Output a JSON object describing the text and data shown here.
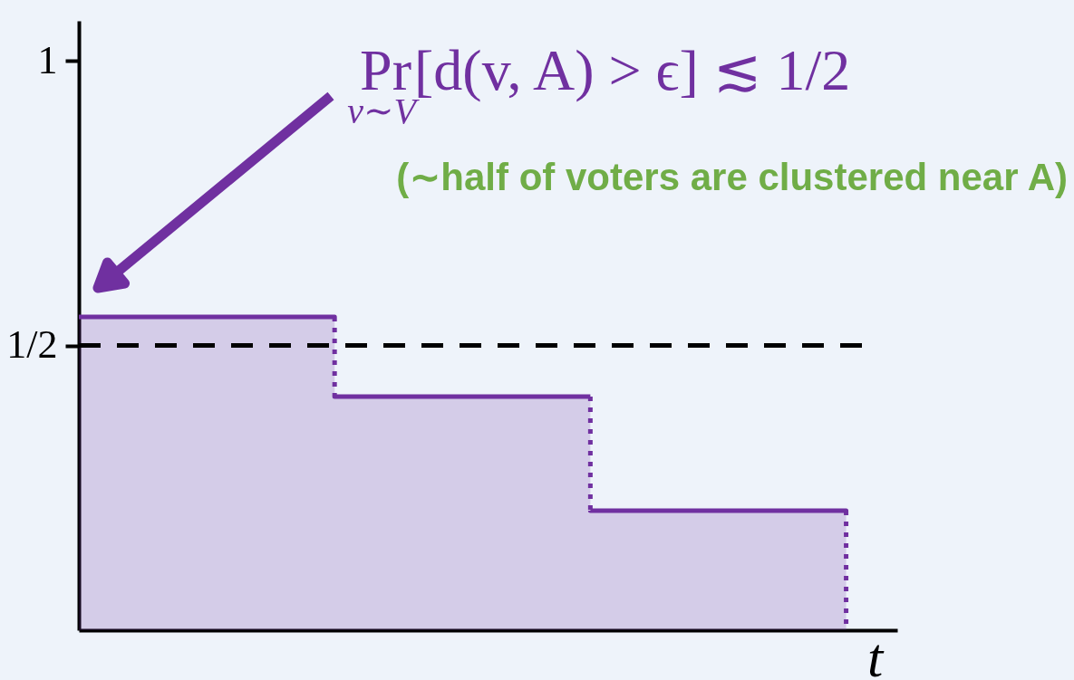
{
  "chart_data": {
    "type": "step",
    "categories": [
      null,
      null,
      null,
      null
    ],
    "series": [
      {
        "type": "area",
        "color": "#7030a0",
        "values": [
          0.55,
          0.41,
          0.21,
          0
        ]
      }
    ],
    "xlabel": "t",
    "ylim": [
      0,
      1.07
    ],
    "yticks": [
      {
        "value": 0.5,
        "label": "1/2"
      },
      1
    ],
    "tick_labels": "y",
    "grid": false,
    "ref_lines": [
      {
        "axis": "y",
        "value": 0.5,
        "color": "#000000",
        "line_style": "dashed"
      }
    ],
    "annotations": [
      "Pr$_{v∼V}$[d(v, A) > ϵ] ≲ 1/2",
      "(∼half of voters are clustered near A)"
    ]
  }
}
